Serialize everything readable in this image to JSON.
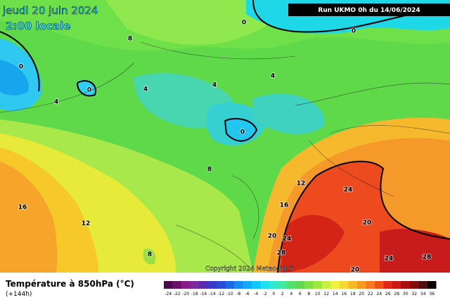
{
  "header": {
    "date": "jeudi 20 juin 2024",
    "time": "2:00 locale",
    "run": "Run UKMO 0h du 14/06/2024",
    "copyright": "Copyright 2024 Meteociel.fr"
  },
  "legend": {
    "title": "Température à 850hPa (°C)",
    "subtitle": "(+144h)",
    "labels": [
      -24,
      -22,
      -20,
      -18,
      -16,
      -14,
      -12,
      -10,
      -8,
      -6,
      -4,
      -2,
      0,
      2,
      4,
      6,
      8,
      10,
      12,
      14,
      16,
      18,
      20,
      22,
      24,
      26,
      28,
      30,
      32,
      34,
      36
    ],
    "colors": [
      "#4a0a4a",
      "#6a106a",
      "#8a1a8a",
      "#7a2a9a",
      "#5a2ab0",
      "#3a3ac8",
      "#2a4ad8",
      "#1a6ae8",
      "#1a8af0",
      "#10aaf8",
      "#10c8f8",
      "#20e0f0",
      "#30e8d0",
      "#40e8a0",
      "#50e070",
      "#60d850",
      "#80e040",
      "#a0e840",
      "#c8f040",
      "#f0f040",
      "#f8d830",
      "#f8b828",
      "#f89820",
      "#f87820",
      "#f05018",
      "#e02818",
      "#c81818",
      "#a81010",
      "#801010",
      "#501010",
      "#100000"
    ]
  },
  "map_labels": [
    0,
    0,
    8,
    0,
    0,
    4,
    4,
    4,
    4,
    0,
    8,
    12,
    24,
    16,
    12,
    16,
    20,
    20,
    24,
    28,
    24,
    28,
    20,
    8
  ]
}
